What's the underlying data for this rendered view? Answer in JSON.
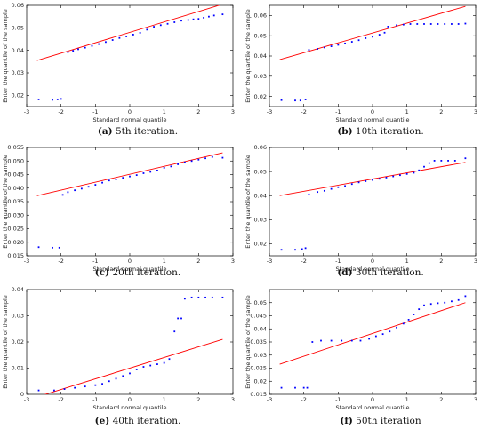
{
  "figure": {
    "style": {
      "point_color": "#0000ff",
      "line_color": "#ff0000",
      "axis_color": "#000000"
    }
  },
  "chart_data": [
    {
      "type": "scatter",
      "caption_tag": "(a)",
      "caption_text": "5th iteration.",
      "xlabel": "Standard normal quantile",
      "ylabel": "Enter the quantile of the sample",
      "xlim": [
        -3,
        3
      ],
      "ylim": [
        0.015,
        0.06
      ],
      "xticks": [
        -3,
        -2,
        -1,
        0,
        1,
        2,
        3
      ],
      "yticks": [
        0.02,
        0.03,
        0.04,
        0.05,
        0.06
      ],
      "ytick_labels": [
        "0.02",
        "0.03",
        "0.04",
        "0.05",
        "0.06"
      ],
      "reference_line": [
        [
          -2.7,
          0.0355
        ],
        [
          2.7,
          0.0605
        ]
      ],
      "points": [
        [
          -2.65,
          0.0182
        ],
        [
          -2.25,
          0.018
        ],
        [
          -2.1,
          0.0182
        ],
        [
          -2.0,
          0.0184
        ],
        [
          -1.8,
          0.0392
        ],
        [
          -1.65,
          0.0398
        ],
        [
          -1.5,
          0.0405
        ],
        [
          -1.3,
          0.0412
        ],
        [
          -1.1,
          0.042
        ],
        [
          -0.9,
          0.0428
        ],
        [
          -0.7,
          0.0437
        ],
        [
          -0.5,
          0.0446
        ],
        [
          -0.3,
          0.0455
        ],
        [
          -0.1,
          0.0462
        ],
        [
          0.1,
          0.047
        ],
        [
          0.3,
          0.0478
        ],
        [
          0.5,
          0.0492
        ],
        [
          0.7,
          0.0505
        ],
        [
          0.9,
          0.0512
        ],
        [
          1.1,
          0.0518
        ],
        [
          1.3,
          0.0525
        ],
        [
          1.5,
          0.0532
        ],
        [
          1.7,
          0.0535
        ],
        [
          1.85,
          0.0538
        ],
        [
          2.0,
          0.054
        ],
        [
          2.15,
          0.0545
        ],
        [
          2.3,
          0.055
        ],
        [
          2.45,
          0.0555
        ],
        [
          2.7,
          0.056
        ]
      ]
    },
    {
      "type": "scatter",
      "caption_tag": "(b)",
      "caption_text": "10th iteration.",
      "xlabel": "Standard normal quantile",
      "ylabel": "Enter the quantile of the sample",
      "xlim": [
        -3,
        3
      ],
      "ylim": [
        0.015,
        0.065
      ],
      "xticks": [
        -3,
        -2,
        -1,
        0,
        1,
        2,
        3
      ],
      "yticks": [
        0.02,
        0.03,
        0.04,
        0.05,
        0.06
      ],
      "ytick_labels": [
        "0.02",
        "0.03",
        "0.04",
        "0.05",
        "0.06"
      ],
      "reference_line": [
        [
          -2.7,
          0.0382
        ],
        [
          2.7,
          0.0645
        ]
      ],
      "points": [
        [
          -2.65,
          0.0182
        ],
        [
          -2.25,
          0.018
        ],
        [
          -2.1,
          0.018
        ],
        [
          -1.95,
          0.0185
        ],
        [
          -1.85,
          0.043
        ],
        [
          -1.6,
          0.0435
        ],
        [
          -1.4,
          0.0442
        ],
        [
          -1.2,
          0.0448
        ],
        [
          -1.0,
          0.0455
        ],
        [
          -0.8,
          0.0462
        ],
        [
          -0.6,
          0.047
        ],
        [
          -0.4,
          0.0478
        ],
        [
          -0.2,
          0.0488
        ],
        [
          0.0,
          0.0495
        ],
        [
          0.2,
          0.0505
        ],
        [
          0.35,
          0.0515
        ],
        [
          0.45,
          0.0545
        ],
        [
          0.7,
          0.0552
        ],
        [
          0.9,
          0.0555
        ],
        [
          1.1,
          0.0558
        ],
        [
          1.3,
          0.0558
        ],
        [
          1.5,
          0.0558
        ],
        [
          1.7,
          0.0558
        ],
        [
          1.9,
          0.0558
        ],
        [
          2.1,
          0.0558
        ],
        [
          2.3,
          0.0558
        ],
        [
          2.5,
          0.0558
        ],
        [
          2.7,
          0.056
        ]
      ]
    },
    {
      "type": "scatter",
      "caption_tag": "(c)",
      "caption_text": "20th iteration.",
      "xlabel": "Standard normal quantile",
      "ylabel": "Enter the quantile of the sample",
      "xlim": [
        -3,
        3
      ],
      "ylim": [
        0.015,
        0.055
      ],
      "xticks": [
        -3,
        -2,
        -1,
        0,
        1,
        2,
        3
      ],
      "yticks": [
        0.015,
        0.02,
        0.025,
        0.03,
        0.035,
        0.04,
        0.045,
        0.05,
        0.055
      ],
      "ytick_labels": [
        "0.015",
        "0.020",
        "0.025",
        "0.030",
        "0.035",
        "0.040",
        "0.045",
        "0.050",
        "0.055"
      ],
      "reference_line": [
        [
          -2.7,
          0.0372
        ],
        [
          2.7,
          0.053
        ]
      ],
      "points": [
        [
          -2.65,
          0.0182
        ],
        [
          -2.25,
          0.018
        ],
        [
          -2.05,
          0.018
        ],
        [
          -1.95,
          0.0375
        ],
        [
          -1.8,
          0.0385
        ],
        [
          -1.6,
          0.0392
        ],
        [
          -1.4,
          0.0398
        ],
        [
          -1.2,
          0.0405
        ],
        [
          -1.0,
          0.0412
        ],
        [
          -0.8,
          0.042
        ],
        [
          -0.6,
          0.0428
        ],
        [
          -0.4,
          0.0432
        ],
        [
          -0.2,
          0.0438
        ],
        [
          0.0,
          0.0443
        ],
        [
          0.2,
          0.0448
        ],
        [
          0.4,
          0.0455
        ],
        [
          0.6,
          0.046
        ],
        [
          0.8,
          0.0465
        ],
        [
          1.0,
          0.0475
        ],
        [
          1.2,
          0.048
        ],
        [
          1.4,
          0.0488
        ],
        [
          1.6,
          0.0495
        ],
        [
          1.8,
          0.05
        ],
        [
          2.0,
          0.0505
        ],
        [
          2.2,
          0.051
        ],
        [
          2.4,
          0.0515
        ],
        [
          2.7,
          0.0512
        ]
      ]
    },
    {
      "type": "scatter",
      "caption_tag": "(d)",
      "caption_text": "30th iteration.",
      "xlabel": "Standard normal quantile",
      "ylabel": "Enter the quantile of the sample",
      "xlim": [
        -3,
        3
      ],
      "ylim": [
        0.015,
        0.06
      ],
      "xticks": [
        -3,
        -2,
        -1,
        0,
        1,
        2,
        3
      ],
      "yticks": [
        0.02,
        0.03,
        0.04,
        0.05,
        0.06
      ],
      "ytick_labels": [
        "0.02",
        "0.03",
        "0.04",
        "0.05",
        "0.06"
      ],
      "reference_line": [
        [
          -2.7,
          0.04
        ],
        [
          2.7,
          0.0538
        ]
      ],
      "points": [
        [
          -2.65,
          0.0175
        ],
        [
          -2.25,
          0.0175
        ],
        [
          -2.05,
          0.0178
        ],
        [
          -1.95,
          0.0182
        ],
        [
          -1.85,
          0.0405
        ],
        [
          -1.6,
          0.0415
        ],
        [
          -1.4,
          0.042
        ],
        [
          -1.2,
          0.0428
        ],
        [
          -1.0,
          0.0435
        ],
        [
          -0.8,
          0.044
        ],
        [
          -0.6,
          0.0448
        ],
        [
          -0.4,
          0.0455
        ],
        [
          -0.2,
          0.046
        ],
        [
          0.0,
          0.0465
        ],
        [
          0.2,
          0.047
        ],
        [
          0.4,
          0.0475
        ],
        [
          0.6,
          0.048
        ],
        [
          0.8,
          0.0485
        ],
        [
          1.0,
          0.049
        ],
        [
          1.2,
          0.0495
        ],
        [
          1.35,
          0.0505
        ],
        [
          1.5,
          0.052
        ],
        [
          1.65,
          0.0535
        ],
        [
          1.8,
          0.0545
        ],
        [
          2.0,
          0.0545
        ],
        [
          2.2,
          0.0545
        ],
        [
          2.4,
          0.0545
        ],
        [
          2.7,
          0.0555
        ]
      ]
    },
    {
      "type": "scatter",
      "caption_tag": "(e)",
      "caption_text": "40th iteration.",
      "xlabel": "Standard normal quantile",
      "ylabel": "Enter the quantile of the sample",
      "xlim": [
        -3,
        3
      ],
      "ylim": [
        0.0,
        0.04
      ],
      "xticks": [
        -3,
        -2,
        -1,
        0,
        1,
        2,
        3
      ],
      "yticks": [
        0.0,
        0.01,
        0.02,
        0.03,
        0.04
      ],
      "ytick_labels": [
        "0",
        "0.01",
        "0.02",
        "0.03",
        "0.04"
      ],
      "reference_line": [
        [
          -2.7,
          -0.001
        ],
        [
          2.7,
          0.021
        ]
      ],
      "points": [
        [
          -2.65,
          0.0015
        ],
        [
          -2.2,
          0.0015
        ],
        [
          -1.9,
          0.002
        ],
        [
          -1.6,
          0.0025
        ],
        [
          -1.3,
          0.003
        ],
        [
          -1.0,
          0.0035
        ],
        [
          -0.8,
          0.004
        ],
        [
          -0.6,
          0.005
        ],
        [
          -0.4,
          0.006
        ],
        [
          -0.2,
          0.007
        ],
        [
          0.0,
          0.008
        ],
        [
          0.2,
          0.0095
        ],
        [
          0.4,
          0.0105
        ],
        [
          0.6,
          0.011
        ],
        [
          0.8,
          0.0115
        ],
        [
          1.0,
          0.012
        ],
        [
          1.15,
          0.0135
        ],
        [
          1.3,
          0.024
        ],
        [
          1.4,
          0.029
        ],
        [
          1.5,
          0.029
        ],
        [
          1.6,
          0.0365
        ],
        [
          1.8,
          0.037
        ],
        [
          2.0,
          0.037
        ],
        [
          2.2,
          0.037
        ],
        [
          2.4,
          0.037
        ],
        [
          2.7,
          0.037
        ]
      ]
    },
    {
      "type": "scatter",
      "caption_tag": "(f)",
      "caption_text": "50th iteration",
      "xlabel": "Standard normal quantile",
      "ylabel": "Enter the quantile of the sample",
      "xlim": [
        -3,
        3
      ],
      "ylim": [
        0.015,
        0.055
      ],
      "xticks": [
        -3,
        -2,
        -1,
        0,
        1,
        2,
        3
      ],
      "yticks": [
        0.015,
        0.02,
        0.025,
        0.03,
        0.035,
        0.04,
        0.045,
        0.05
      ],
      "ytick_labels": [
        "0.015",
        "0.02",
        "0.025",
        "0.03",
        "0.035",
        "0.04",
        "0.045",
        "0.05"
      ],
      "reference_line": [
        [
          -2.7,
          0.0265
        ],
        [
          2.7,
          0.05
        ]
      ],
      "points": [
        [
          -2.65,
          0.0175
        ],
        [
          -2.25,
          0.0175
        ],
        [
          -2.0,
          0.0175
        ],
        [
          -1.9,
          0.0175
        ],
        [
          -1.75,
          0.035
        ],
        [
          -1.5,
          0.0355
        ],
        [
          -1.2,
          0.0355
        ],
        [
          -0.9,
          0.0355
        ],
        [
          -0.6,
          0.0355
        ],
        [
          -0.35,
          0.0355
        ],
        [
          -0.1,
          0.0362
        ],
        [
          0.1,
          0.0372
        ],
        [
          0.3,
          0.038
        ],
        [
          0.5,
          0.039
        ],
        [
          0.7,
          0.0405
        ],
        [
          0.9,
          0.042
        ],
        [
          1.05,
          0.0435
        ],
        [
          1.2,
          0.0455
        ],
        [
          1.35,
          0.0475
        ],
        [
          1.5,
          0.049
        ],
        [
          1.7,
          0.0495
        ],
        [
          1.9,
          0.0498
        ],
        [
          2.1,
          0.05
        ],
        [
          2.3,
          0.0505
        ],
        [
          2.5,
          0.051
        ],
        [
          2.7,
          0.0525
        ]
      ]
    }
  ]
}
